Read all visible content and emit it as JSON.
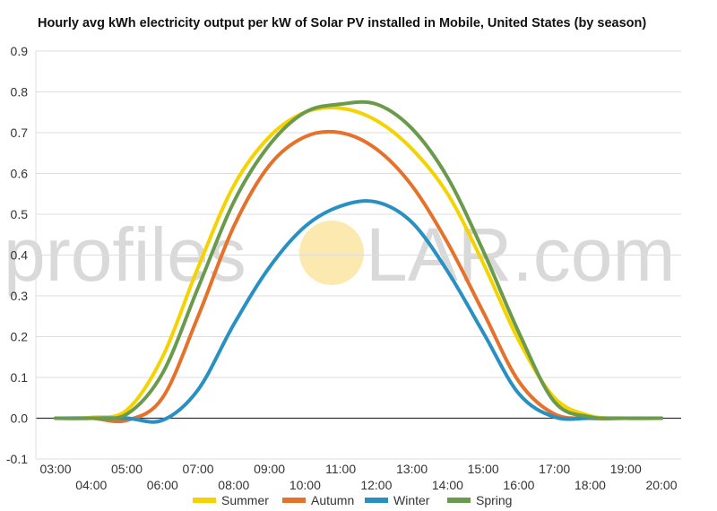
{
  "chart_data": {
    "type": "line",
    "title": "Hourly avg kWh electricity output per kW of Solar PV installed in Mobile, United States (by season)",
    "xlabel": "",
    "ylabel": "",
    "ylim": [
      -0.1,
      0.9
    ],
    "yticks": [
      "-0.1",
      "0.0",
      "0.1",
      "0.2",
      "0.3",
      "0.4",
      "0.5",
      "0.6",
      "0.7",
      "0.8",
      "0.9"
    ],
    "xlim": [
      3,
      20
    ],
    "xticks_upper": [
      "03:00",
      "05:00",
      "07:00",
      "09:00",
      "11:00",
      "13:00",
      "15:00",
      "17:00",
      "19:00"
    ],
    "xticks_lower": [
      "04:00",
      "06:00",
      "08:00",
      "10:00",
      "12:00",
      "14:00",
      "16:00",
      "18:00",
      "20:00"
    ],
    "grid": true,
    "legend_position": "bottom",
    "watermark": {
      "left": "profiles",
      "right": "LAR.com",
      "sun_color": "#fbe9b0"
    },
    "x": [
      "03:00",
      "04:00",
      "05:00",
      "06:00",
      "07:00",
      "08:00",
      "09:00",
      "10:00",
      "11:00",
      "12:00",
      "13:00",
      "14:00",
      "15:00",
      "16:00",
      "17:00",
      "18:00",
      "19:00",
      "20:00"
    ],
    "series": [
      {
        "name": "Summer",
        "color": "#f5d300",
        "values": [
          0.0,
          0.002,
          0.02,
          0.15,
          0.37,
          0.57,
          0.69,
          0.75,
          0.76,
          0.73,
          0.66,
          0.55,
          0.38,
          0.19,
          0.05,
          0.006,
          0.0,
          0.0
        ]
      },
      {
        "name": "Autumn",
        "color": "#e5712a",
        "values": [
          0.0,
          0.0,
          -0.005,
          0.05,
          0.25,
          0.47,
          0.62,
          0.69,
          0.7,
          0.66,
          0.57,
          0.43,
          0.26,
          0.09,
          0.01,
          0.0,
          0.0,
          0.0
        ]
      },
      {
        "name": "Winter",
        "color": "#2890c2",
        "values": [
          0.0,
          0.0,
          0.0,
          -0.005,
          0.07,
          0.23,
          0.37,
          0.47,
          0.52,
          0.53,
          0.48,
          0.36,
          0.21,
          0.06,
          0.003,
          0.0,
          0.0,
          0.0
        ]
      },
      {
        "name": "Spring",
        "color": "#6a9a4c",
        "values": [
          0.0,
          0.0,
          0.01,
          0.11,
          0.32,
          0.53,
          0.67,
          0.75,
          0.77,
          0.77,
          0.71,
          0.59,
          0.41,
          0.21,
          0.04,
          0.003,
          0.0,
          0.0
        ]
      }
    ]
  }
}
